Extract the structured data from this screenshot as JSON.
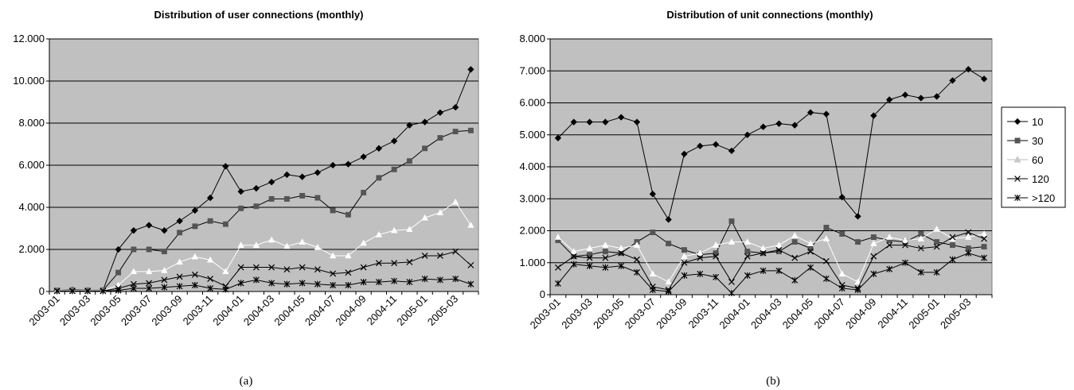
{
  "chart_data": [
    {
      "type": "line",
      "title": "Distribution of user connections (monthly)",
      "caption": "(a)",
      "xlabel": "",
      "ylabel": "",
      "ylim": [
        0,
        12000
      ],
      "yticks": [
        0,
        2000,
        4000,
        6000,
        8000,
        10000,
        12000
      ],
      "ytick_labels": [
        "0",
        "2.000",
        "4.000",
        "6.000",
        "8.000",
        "10.000",
        "12.000"
      ],
      "xtick_labels": [
        "2003-01",
        "2003-03",
        "2003-05",
        "2003-07",
        "2003-09",
        "2003-11",
        "2004-01",
        "2004-03",
        "2004-05",
        "2004-07",
        "2004-09",
        "2004-11",
        "2005-01",
        "2005-03"
      ],
      "x": [
        "2003-01",
        "2003-02",
        "2003-03",
        "2003-04",
        "2003-05",
        "2003-06",
        "2003-07",
        "2003-08",
        "2003-09",
        "2003-10",
        "2003-11",
        "2003-12",
        "2004-01",
        "2004-02",
        "2004-03",
        "2004-04",
        "2004-05",
        "2004-06",
        "2004-07",
        "2004-08",
        "2004-09",
        "2004-10",
        "2004-11",
        "2004-12",
        "2005-01",
        "2005-02",
        "2005-03",
        "2005-04"
      ],
      "grid": true,
      "plot_bg": "#c0c0c0",
      "series": [
        {
          "key": "s10",
          "marker": "diamond",
          "color": "#000000",
          "values": [
            50,
            80,
            60,
            60,
            2000,
            2900,
            3150,
            2900,
            3350,
            3850,
            4450,
            5950,
            4750,
            4900,
            5200,
            5550,
            5450,
            5650,
            6000,
            6050,
            6400,
            6800,
            7150,
            7900,
            8050,
            8500,
            8750,
            10550
          ]
        },
        {
          "key": "s30",
          "marker": "square",
          "color": "#555555",
          "values": [
            50,
            60,
            50,
            60,
            900,
            2000,
            2000,
            1900,
            2800,
            3100,
            3350,
            3200,
            3950,
            4050,
            4400,
            4400,
            4550,
            4450,
            3850,
            3650,
            4700,
            5400,
            5800,
            6200,
            6800,
            7300,
            7600,
            7650
          ]
        },
        {
          "key": "s60",
          "marker": "triangle",
          "color": "#ffffff",
          "values": [
            50,
            50,
            50,
            50,
            300,
            950,
            950,
            1000,
            1400,
            1650,
            1500,
            950,
            2200,
            2200,
            2450,
            2150,
            2350,
            2100,
            1700,
            1700,
            2300,
            2700,
            2900,
            2950,
            3500,
            3750,
            4250,
            3150
          ]
        },
        {
          "key": "s120",
          "marker": "x",
          "color": "#444444",
          "values": [
            30,
            30,
            30,
            30,
            150,
            350,
            400,
            550,
            700,
            800,
            600,
            250,
            1150,
            1150,
            1150,
            1050,
            1150,
            1050,
            850,
            900,
            1150,
            1350,
            1350,
            1400,
            1700,
            1700,
            1900,
            1250
          ]
        },
        {
          "key": "s120p",
          "marker": "star",
          "color": "#000000",
          "values": [
            20,
            20,
            20,
            20,
            50,
            150,
            150,
            200,
            250,
            300,
            150,
            100,
            400,
            550,
            400,
            350,
            400,
            350,
            300,
            300,
            450,
            450,
            500,
            450,
            600,
            550,
            600,
            350
          ]
        }
      ]
    },
    {
      "type": "line",
      "title": "Distribution of unit connections (monthly)",
      "caption": "(b)",
      "xlabel": "",
      "ylabel": "",
      "ylim": [
        0,
        8000
      ],
      "yticks": [
        0,
        1000,
        2000,
        3000,
        4000,
        5000,
        6000,
        7000,
        8000
      ],
      "ytick_labels": [
        "0",
        "1.000",
        "2.000",
        "3.000",
        "4.000",
        "5.000",
        "6.000",
        "7.000",
        "8.000"
      ],
      "xtick_labels": [
        "2003-01",
        "2003-03",
        "2003-05",
        "2003-07",
        "2003-09",
        "2003-11",
        "2004-01",
        "2004-03",
        "2004-05",
        "2004-07",
        "2004-09",
        "2004-11",
        "2005-01",
        "2005-03"
      ],
      "x": [
        "2003-01",
        "2003-02",
        "2003-03",
        "2003-04",
        "2003-05",
        "2003-06",
        "2003-07",
        "2003-08",
        "2003-09",
        "2003-10",
        "2003-11",
        "2003-12",
        "2004-01",
        "2004-02",
        "2004-03",
        "2004-04",
        "2004-05",
        "2004-06",
        "2004-07",
        "2004-08",
        "2004-09",
        "2004-10",
        "2004-11",
        "2004-12",
        "2005-01",
        "2005-02",
        "2005-03",
        "2005-04"
      ],
      "grid": true,
      "plot_bg": "#c0c0c0",
      "legend": {
        "placement": "right"
      },
      "series": [
        {
          "key": "s10",
          "name": "10",
          "marker": "diamond",
          "color": "#000000",
          "values": [
            4900,
            5400,
            5400,
            5400,
            5550,
            5400,
            3150,
            2350,
            4400,
            4650,
            4700,
            4500,
            5000,
            5250,
            5350,
            5300,
            5700,
            5650,
            3050,
            2450,
            5600,
            6100,
            6250,
            6150,
            6200,
            6700,
            7050,
            6750
          ]
        },
        {
          "key": "s30",
          "name": "30",
          "marker": "square",
          "color": "#555555",
          "values": [
            1700,
            1200,
            1250,
            1350,
            1300,
            1650,
            1950,
            1600,
            1400,
            1250,
            1300,
            2300,
            1350,
            1300,
            1350,
            1650,
            1450,
            2100,
            1900,
            1650,
            1800,
            1700,
            1650,
            1900,
            1650,
            1550,
            1450,
            1500
          ]
        },
        {
          "key": "s60",
          "name": "60",
          "marker": "triangle",
          "color": "#ffffff",
          "values": [
            1800,
            1350,
            1450,
            1550,
            1450,
            1550,
            650,
            400,
            1200,
            1300,
            1550,
            1650,
            1650,
            1450,
            1550,
            1850,
            1600,
            1750,
            650,
            400,
            1600,
            1800,
            1700,
            1750,
            2050,
            1750,
            1800,
            1900
          ]
        },
        {
          "key": "s120",
          "name": "120",
          "marker": "x",
          "color": "#444444",
          "values": [
            850,
            1200,
            1150,
            1150,
            1300,
            1100,
            250,
            150,
            1000,
            1150,
            1200,
            400,
            1200,
            1300,
            1400,
            1150,
            1350,
            1050,
            300,
            200,
            1200,
            1550,
            1550,
            1450,
            1500,
            1800,
            1950,
            1750
          ]
        },
        {
          "key": "s120p",
          "name": ">120",
          "marker": "star",
          "color": "#000000",
          "values": [
            350,
            950,
            900,
            850,
            900,
            700,
            150,
            100,
            600,
            650,
            550,
            50,
            600,
            750,
            750,
            450,
            850,
            500,
            200,
            150,
            650,
            800,
            1000,
            700,
            700,
            1100,
            1300,
            1150
          ]
        }
      ]
    }
  ]
}
